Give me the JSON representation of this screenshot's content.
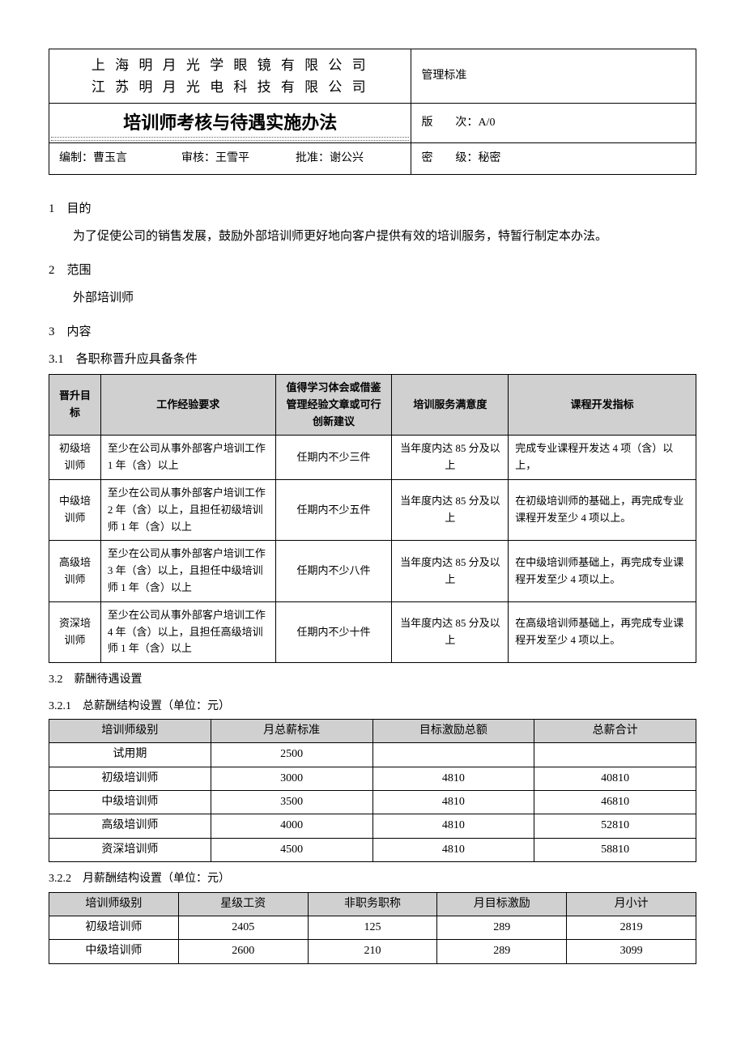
{
  "header": {
    "company1": "上 海 明 月 光 学 眼 镜 有 限 公 司",
    "company2": "江 苏 明 月 光 电 科 技 有 限 公 司",
    "mgmt_std": "管理标准",
    "doc_title": "培训师考核与待遇实施办法",
    "version_label": "版　　次：",
    "version_value": "A/0",
    "author_label": "编制：",
    "author_value": "曹玉言",
    "reviewer_label": "审核：",
    "reviewer_value": "王雪平",
    "approver_label": "批准：",
    "approver_value": "谢公兴",
    "sec_label": "密　　级：",
    "sec_value": "秘密"
  },
  "s1": {
    "num": "1　目的",
    "body": "为了促使公司的销售发展，鼓励外部培训师更好地向客户提供有效的培训服务，特暂行制定本办法。"
  },
  "s2": {
    "num": "2　范围",
    "body": "外部培训师"
  },
  "s3": {
    "num": "3　内容",
    "sub31": "3.1　各职称晋升应具备条件",
    "sub32": "3.2　薪酬待遇设置",
    "sub321": "3.2.1　总薪酬结构设置（单位：元）",
    "sub322": "3.2.2　月薪酬结构设置（单位：元）"
  },
  "promo_headers": {
    "c0": "晋升目标",
    "c1": "工作经验要求",
    "c2": "值得学习体会或借鉴管理经验文章或可行创新建议",
    "c3": "培训服务满意度",
    "c4": "课程开发指标"
  },
  "promo_rows": [
    {
      "target": "初级培训师",
      "exp": "至少在公司从事外部客户培训工作 1 年（含）以上",
      "article": "任期内不少三件",
      "sat": "当年度内达 85 分及以上",
      "course": "完成专业课程开发达 4 项（含）以上，"
    },
    {
      "target": "中级培训师",
      "exp": "至少在公司从事外部客户培训工作 2 年（含）以上，且担任初级培训师 1 年（含）以上",
      "article": "任期内不少五件",
      "sat": "当年度内达 85 分及以上",
      "course": "在初级培训师的基础上，再完成专业课程开发至少 4 项以上。"
    },
    {
      "target": "高级培训师",
      "exp": "至少在公司从事外部客户培训工作 3 年（含）以上，且担任中级培训师 1 年（含）以上",
      "article": "任期内不少八件",
      "sat": "当年度内达 85 分及以上",
      "course": "在中级培训师基础上，再完成专业课程开发至少 4 项以上。"
    },
    {
      "target": "资深培训师",
      "exp": "至少在公司从事外部客户培训工作 4 年（含）以上，且担任高级培训师 1 年（含）以上",
      "article": "任期内不少十件",
      "sat": "当年度内达 85 分及以上",
      "course": "在高级培训师基础上，再完成专业课程开发至少 4 项以上。"
    }
  ],
  "total_salary_headers": {
    "c0": "培训师级别",
    "c1": "月总薪标准",
    "c2": "目标激励总额",
    "c3": "总薪合计"
  },
  "total_salary_rows": [
    {
      "level": "试用期",
      "monthly": "2500",
      "bonus": "",
      "total": ""
    },
    {
      "level": "初级培训师",
      "monthly": "3000",
      "bonus": "4810",
      "total": "40810"
    },
    {
      "level": "中级培训师",
      "monthly": "3500",
      "bonus": "4810",
      "total": "46810"
    },
    {
      "level": "高级培训师",
      "monthly": "4000",
      "bonus": "4810",
      "total": "52810"
    },
    {
      "level": "资深培训师",
      "monthly": "4500",
      "bonus": "4810",
      "total": "58810"
    }
  ],
  "monthly_salary_headers": {
    "c0": "培训师级别",
    "c1": "星级工资",
    "c2": "非职务职称",
    "c3": "月目标激励",
    "c4": "月小计"
  },
  "monthly_salary_rows": [
    {
      "level": "初级培训师",
      "star": "2405",
      "nonpos": "125",
      "bonus": "289",
      "subtotal": "2819"
    },
    {
      "level": "中级培训师",
      "star": "2600",
      "nonpos": "210",
      "bonus": "289",
      "subtotal": "3099"
    }
  ],
  "style": {
    "header_bg": "#d0d0d0",
    "border_color": "#000000",
    "body_fontsize": 14,
    "title_fontsize": 22
  }
}
